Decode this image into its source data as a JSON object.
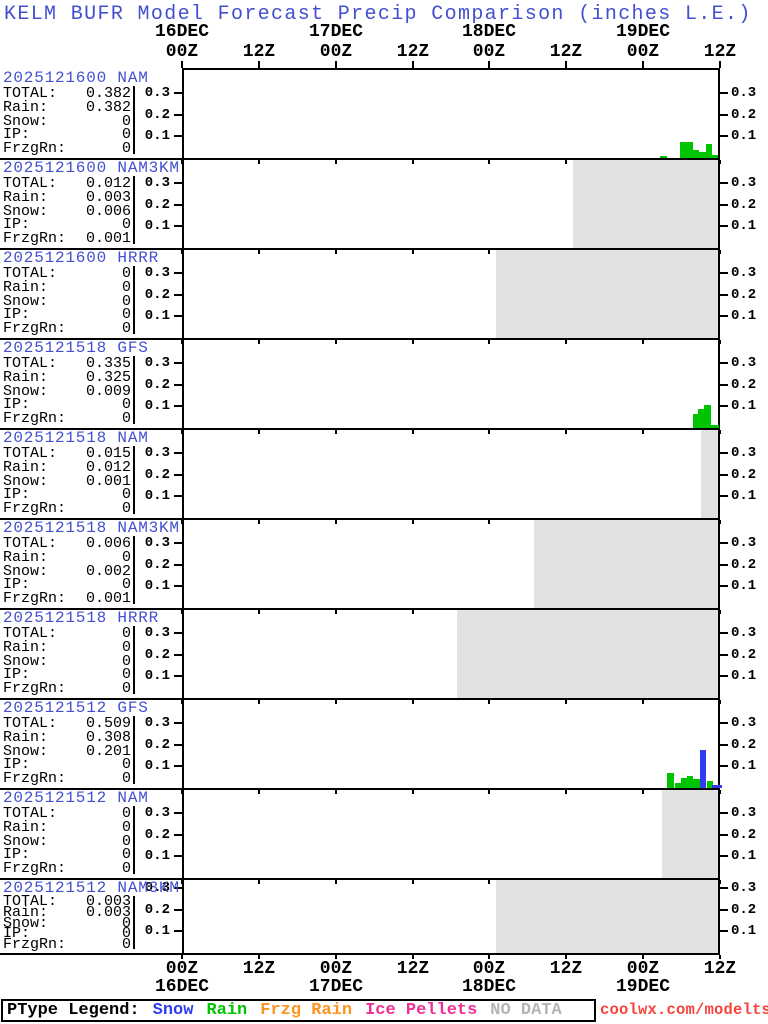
{
  "title": "KELM BUFR Model Forecast Precip Comparison (inches L.E.)",
  "watermark": "coolwx.com/modelts",
  "colors": {
    "title_blue": "#4250cf",
    "run_label_blue": "#4250cf",
    "rain": "#00c400",
    "snow": "#2f3cf0",
    "frzg_rain": "#ff9320",
    "ice_pellets": "#ee2e94",
    "no_data_text": "#b5b5b5",
    "no_data_fill": "#e2e2e2",
    "watermark_red": "#f8433c",
    "axis_black": "#000000"
  },
  "legend": {
    "heading": "PType Legend:",
    "items": [
      {
        "label": "Snow",
        "color_key": "snow"
      },
      {
        "label": "Rain",
        "color_key": "rain"
      },
      {
        "label": "Frzg Rain",
        "color_key": "frzg_rain"
      },
      {
        "label": "Ice Pellets",
        "color_key": "ice_pellets"
      },
      {
        "label": "NO DATA",
        "color_key": "no_data_text"
      }
    ]
  },
  "chart_data": {
    "type": "bar",
    "x_axis": {
      "hours_span": 84,
      "tick_labels": [
        {
          "hour": 0,
          "label": "00Z"
        },
        {
          "hour": 12,
          "label": "12Z"
        },
        {
          "hour": 24,
          "label": "00Z"
        },
        {
          "hour": 36,
          "label": "12Z"
        },
        {
          "hour": 48,
          "label": "00Z"
        },
        {
          "hour": 60,
          "label": "12Z"
        },
        {
          "hour": 72,
          "label": "00Z"
        },
        {
          "hour": 84,
          "label": "12Z"
        }
      ],
      "date_labels": [
        {
          "hour": 0,
          "label": "16DEC"
        },
        {
          "hour": 24,
          "label": "17DEC"
        },
        {
          "hour": 48,
          "label": "18DEC"
        },
        {
          "hour": 72,
          "label": "19DEC"
        }
      ]
    },
    "y_axis": {
      "ticks": [
        0.1,
        0.2,
        0.3
      ],
      "tick_labels": [
        "0.1",
        "0.2",
        "0.3"
      ],
      "units_per_216px": 1.0,
      "max_value": 0.41
    },
    "stat_labels": [
      "TOTAL:",
      "Rain:",
      "Snow:",
      "IP:",
      "FrzgRn:"
    ],
    "panels": [
      {
        "run_label": "2025121600 NAM",
        "stats": [
          "0.382",
          "0.382",
          "0",
          "0",
          "0"
        ],
        "no_data_start_hour": null,
        "bars": [
          {
            "start_hour": 74.6,
            "dur_hours": 1.1,
            "value": 0.008,
            "ptype": "rain"
          },
          {
            "start_hour": 77.8,
            "dur_hours": 2.0,
            "value": 0.075,
            "ptype": "rain"
          },
          {
            "start_hour": 79.8,
            "dur_hours": 0.9,
            "value": 0.038,
            "ptype": "rain"
          },
          {
            "start_hour": 80.7,
            "dur_hours": 1.1,
            "value": 0.026,
            "ptype": "rain"
          },
          {
            "start_hour": 81.8,
            "dur_hours": 0.9,
            "value": 0.064,
            "ptype": "rain"
          },
          {
            "start_hour": 82.7,
            "dur_hours": 1.0,
            "value": 0.012,
            "ptype": "rain"
          }
        ]
      },
      {
        "run_label": "2025121600 NAM3KM",
        "stats": [
          "0.012",
          "0.003",
          "0.006",
          "0",
          "0.001"
        ],
        "no_data_start_hour": 61,
        "bars": []
      },
      {
        "run_label": "2025121600 HRRR",
        "stats": [
          "0",
          "0",
          "0",
          "0",
          "0"
        ],
        "no_data_start_hour": 49,
        "bars": []
      },
      {
        "run_label": "2025121518 GFS",
        "stats": [
          "0.335",
          "0.325",
          "0.009",
          "0",
          "0"
        ],
        "no_data_start_hour": null,
        "bars": [
          {
            "start_hour": 79.8,
            "dur_hours": 0.8,
            "value": 0.064,
            "ptype": "rain"
          },
          {
            "start_hour": 80.6,
            "dur_hours": 0.9,
            "value": 0.086,
            "ptype": "rain"
          },
          {
            "start_hour": 81.5,
            "dur_hours": 1.1,
            "value": 0.105,
            "ptype": "rain"
          },
          {
            "start_hour": 82.6,
            "dur_hours": 1.2,
            "value": 0.012,
            "ptype": "rain"
          }
        ]
      },
      {
        "run_label": "2025121518 NAM",
        "stats": [
          "0.015",
          "0.012",
          "0.001",
          "0",
          "0"
        ],
        "no_data_start_hour": 81,
        "bars": []
      },
      {
        "run_label": "2025121518 NAM3KM",
        "stats": [
          "0.006",
          "0",
          "0.002",
          "0",
          "0.001"
        ],
        "no_data_start_hour": 55,
        "bars": []
      },
      {
        "run_label": "2025121518 HRRR",
        "stats": [
          "0",
          "0",
          "0",
          "0",
          "0"
        ],
        "no_data_start_hour": 43,
        "bars": []
      },
      {
        "run_label": "2025121512 GFS",
        "stats": [
          "0.509",
          "0.308",
          "0.201",
          "0",
          "0"
        ],
        "no_data_start_hour": null,
        "bars": [
          {
            "start_hour": 75.8,
            "dur_hours": 1.1,
            "value": 0.068,
            "ptype": "rain"
          },
          {
            "start_hour": 76.9,
            "dur_hours": 1.0,
            "value": 0.024,
            "ptype": "rain"
          },
          {
            "start_hour": 77.9,
            "dur_hours": 1.0,
            "value": 0.046,
            "ptype": "rain"
          },
          {
            "start_hour": 78.9,
            "dur_hours": 0.9,
            "value": 0.056,
            "ptype": "rain"
          },
          {
            "start_hour": 79.8,
            "dur_hours": 1.1,
            "value": 0.04,
            "ptype": "rain"
          },
          {
            "start_hour": 80.9,
            "dur_hours": 1.0,
            "value": 0.175,
            "ptype": "snow"
          },
          {
            "start_hour": 81.9,
            "dur_hours": 0.9,
            "value": 0.032,
            "ptype": "rain"
          },
          {
            "start_hour": 82.8,
            "dur_hours": 1.5,
            "value": 0.012,
            "ptype": "snow"
          }
        ]
      },
      {
        "run_label": "2025121512 NAM",
        "stats": [
          "0",
          "0",
          "0",
          "0",
          "0"
        ],
        "no_data_start_hour": 75,
        "bars": []
      },
      {
        "run_label": "2025121512 NAM3KM",
        "stats": [
          "0.003",
          "0.003",
          "0",
          "0",
          "0"
        ],
        "no_data_start_hour": 49,
        "bars": []
      }
    ]
  }
}
